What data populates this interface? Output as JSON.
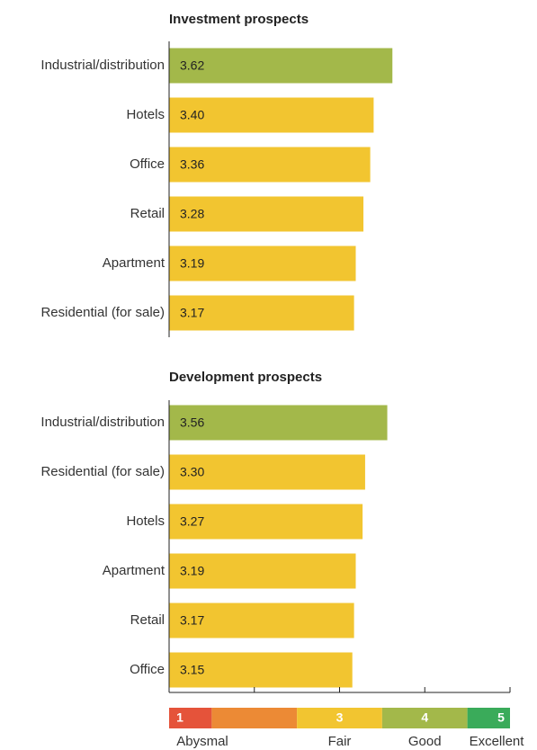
{
  "chart_data": [
    {
      "type": "bar",
      "orientation": "horizontal",
      "title": "Investment prospects",
      "categories": [
        "Industrial/distribution",
        "Hotels",
        "Office",
        "Retail",
        "Apartment",
        "Residential (for sale)"
      ],
      "values": [
        3.62,
        3.4,
        3.36,
        3.28,
        3.19,
        3.17
      ],
      "value_labels": [
        "3.62",
        "3.40",
        "3.36",
        "3.28",
        "3.19",
        "3.17"
      ],
      "colors": [
        "#a3b84a",
        "#f2c530",
        "#f2c530",
        "#f2c530",
        "#f2c530",
        "#f2c530"
      ],
      "xlim": [
        1,
        5
      ]
    },
    {
      "type": "bar",
      "orientation": "horizontal",
      "title": "Development prospects",
      "categories": [
        "Industrial/distribution",
        "Residential (for sale)",
        "Hotels",
        "Apartment",
        "Retail",
        "Office"
      ],
      "values": [
        3.56,
        3.3,
        3.27,
        3.19,
        3.17,
        3.15
      ],
      "value_labels": [
        "3.56",
        "3.30",
        "3.27",
        "3.19",
        "3.17",
        "3.15"
      ],
      "colors": [
        "#a3b84a",
        "#f2c530",
        "#f2c530",
        "#f2c530",
        "#f2c530",
        "#f2c530"
      ],
      "xlim": [
        1,
        5
      ],
      "xticks": [
        1,
        2,
        3,
        4,
        5
      ],
      "scale": [
        {
          "from": 1,
          "to": 1.5,
          "label": "1",
          "name": "Abysmal",
          "color": "#e5533a"
        },
        {
          "from": 1.5,
          "to": 2.5,
          "label": null,
          "name": null,
          "color": "#ec8a35"
        },
        {
          "from": 2.5,
          "to": 3.5,
          "label": "3",
          "name": "Fair",
          "color": "#f2c530"
        },
        {
          "from": 3.5,
          "to": 4.5,
          "label": "4",
          "name": "Good",
          "color": "#a3b84a"
        },
        {
          "from": 4.5,
          "to": 5,
          "label": "5",
          "name": "Excellent",
          "color": "#3aab5a"
        }
      ]
    }
  ]
}
